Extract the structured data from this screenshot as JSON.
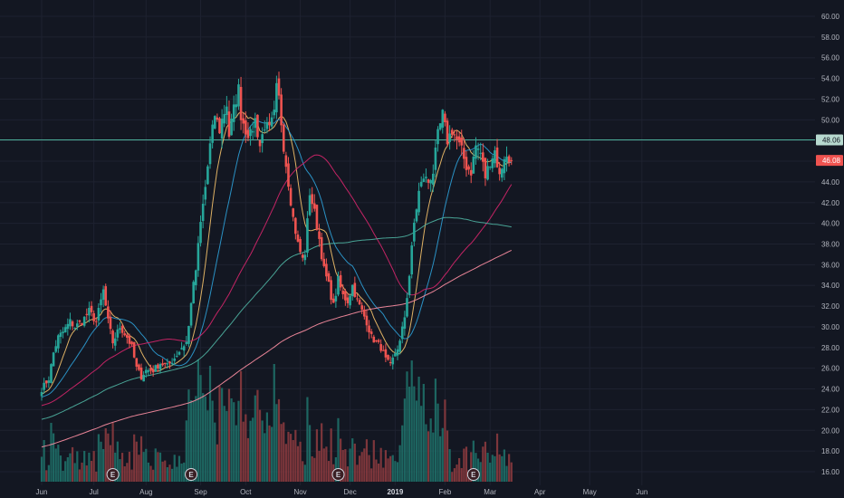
{
  "chart_data": {
    "type": "candlestick",
    "symbol_context": "daily price chart with moving averages and volume",
    "y_axis": {
      "side": "right",
      "ylim": [
        15,
        61
      ],
      "ticks": [
        "60.00",
        "58.00",
        "56.00",
        "54.00",
        "52.00",
        "50.00",
        "48.00",
        "46.00",
        "44.00",
        "42.00",
        "40.00",
        "38.00",
        "36.00",
        "34.00",
        "32.00",
        "30.00",
        "28.00",
        "26.00",
        "24.00",
        "22.00",
        "20.00",
        "18.00",
        "16.00"
      ]
    },
    "x_axis": {
      "ticks": [
        {
          "label": "Jun",
          "day": 0,
          "bold": false
        },
        {
          "label": "Jul",
          "day": 22,
          "bold": false
        },
        {
          "label": "Aug",
          "day": 44,
          "bold": false
        },
        {
          "label": "Sep",
          "day": 67,
          "bold": false
        },
        {
          "label": "Oct",
          "day": 86,
          "bold": false
        },
        {
          "label": "Nov",
          "day": 109,
          "bold": false
        },
        {
          "label": "Dec",
          "day": 130,
          "bold": false
        },
        {
          "label": "2019",
          "day": 149,
          "bold": true
        },
        {
          "label": "Feb",
          "day": 170,
          "bold": false
        },
        {
          "label": "Mar",
          "day": 189,
          "bold": false
        },
        {
          "label": "Apr",
          "day": 210,
          "bold": false
        },
        {
          "label": "May",
          "day": 231,
          "bold": false
        },
        {
          "label": "Jun",
          "day": 253,
          "bold": false
        }
      ]
    },
    "grid": true,
    "horizontal_line": {
      "value": 48.06,
      "label": "48.06",
      "color": "#4caf9a"
    },
    "last_price": {
      "value": 46.08,
      "label": "46.08",
      "color": "#ef5350"
    },
    "earnings_markers": [
      {
        "label": "E",
        "day": 30
      },
      {
        "label": "E",
        "day": 63
      },
      {
        "label": "E",
        "day": 125
      },
      {
        "label": "E",
        "day": 182
      }
    ],
    "price_anchors": [
      [
        0,
        24.0
      ],
      [
        3,
        25.0
      ],
      [
        5,
        27.5
      ],
      [
        7,
        29.0
      ],
      [
        9,
        29.5
      ],
      [
        12,
        30.5
      ],
      [
        14,
        30.0
      ],
      [
        17,
        30.5
      ],
      [
        20,
        31.5
      ],
      [
        23,
        30.5
      ],
      [
        25,
        32.5
      ],
      [
        26,
        33.5
      ],
      [
        28,
        30.5
      ],
      [
        30,
        28.5
      ],
      [
        33,
        30.0
      ],
      [
        36,
        29.0
      ],
      [
        38,
        28.0
      ],
      [
        40,
        26.0
      ],
      [
        42,
        25.2
      ],
      [
        44,
        25.8
      ],
      [
        47,
        25.8
      ],
      [
        50,
        26.5
      ],
      [
        53,
        26.2
      ],
      [
        56,
        27.0
      ],
      [
        59,
        28.0
      ],
      [
        61,
        28.5
      ],
      [
        62,
        30.0
      ],
      [
        63,
        32.5
      ],
      [
        65,
        35.5
      ],
      [
        67,
        40.0
      ],
      [
        69,
        43.5
      ],
      [
        71,
        47.5
      ],
      [
        73,
        50.5
      ],
      [
        75,
        49.0
      ],
      [
        76,
        50.0
      ],
      [
        78,
        51.5
      ],
      [
        79,
        48.5
      ],
      [
        81,
        51.0
      ],
      [
        83,
        53.0
      ],
      [
        84,
        50.5
      ],
      [
        86,
        49.0
      ],
      [
        88,
        48.5
      ],
      [
        90,
        50.0
      ],
      [
        92,
        47.5
      ],
      [
        94,
        49.5
      ],
      [
        96,
        49.0
      ],
      [
        98,
        50.5
      ],
      [
        99,
        53.0
      ],
      [
        100,
        52.0
      ],
      [
        102,
        47.5
      ],
      [
        104,
        44.0
      ],
      [
        106,
        40.5
      ],
      [
        108,
        38.0
      ],
      [
        110,
        36.5
      ],
      [
        111,
        37.2
      ],
      [
        113,
        43.0
      ],
      [
        115,
        41.0
      ],
      [
        117,
        38.5
      ],
      [
        119,
        35.5
      ],
      [
        121,
        34.0
      ],
      [
        123,
        32.0
      ],
      [
        125,
        34.5
      ],
      [
        127,
        33.0
      ],
      [
        129,
        32.5
      ],
      [
        131,
        34.0
      ],
      [
        133,
        32.5
      ],
      [
        135,
        31.5
      ],
      [
        137,
        30.5
      ],
      [
        139,
        29.0
      ],
      [
        141,
        28.5
      ],
      [
        143,
        28.0
      ],
      [
        145,
        26.8
      ],
      [
        147,
        26.2
      ],
      [
        149,
        27.5
      ],
      [
        151,
        28.5
      ],
      [
        153,
        31.0
      ],
      [
        155,
        35.0
      ],
      [
        157,
        40.0
      ],
      [
        159,
        43.0
      ],
      [
        161,
        44.5
      ],
      [
        163,
        44.0
      ],
      [
        165,
        45.0
      ],
      [
        167,
        48.5
      ],
      [
        169,
        50.5
      ],
      [
        171,
        48.0
      ],
      [
        173,
        49.0
      ],
      [
        175,
        48.0
      ],
      [
        177,
        47.0
      ],
      [
        179,
        45.5
      ],
      [
        181,
        45.0
      ],
      [
        183,
        47.5
      ],
      [
        185,
        46.8
      ],
      [
        187,
        44.5
      ],
      [
        189,
        46.0
      ],
      [
        191,
        47.0
      ],
      [
        193,
        44.5
      ],
      [
        195,
        46.5
      ],
      [
        197,
        46.0
      ],
      [
        198,
        46.08
      ]
    ],
    "moving_averages": [
      {
        "period": 9,
        "color": "#f5c26b"
      },
      {
        "period": 20,
        "color": "#2e9fd6"
      },
      {
        "period": 50,
        "color": "#d6266b"
      },
      {
        "period": 100,
        "color": "#4fb3a2"
      },
      {
        "period": 200,
        "color": "#ff8fa3"
      }
    ],
    "colors": {
      "up": "#26a69a",
      "down": "#ef5350",
      "background": "#131722",
      "grid": "#1e2230"
    }
  }
}
